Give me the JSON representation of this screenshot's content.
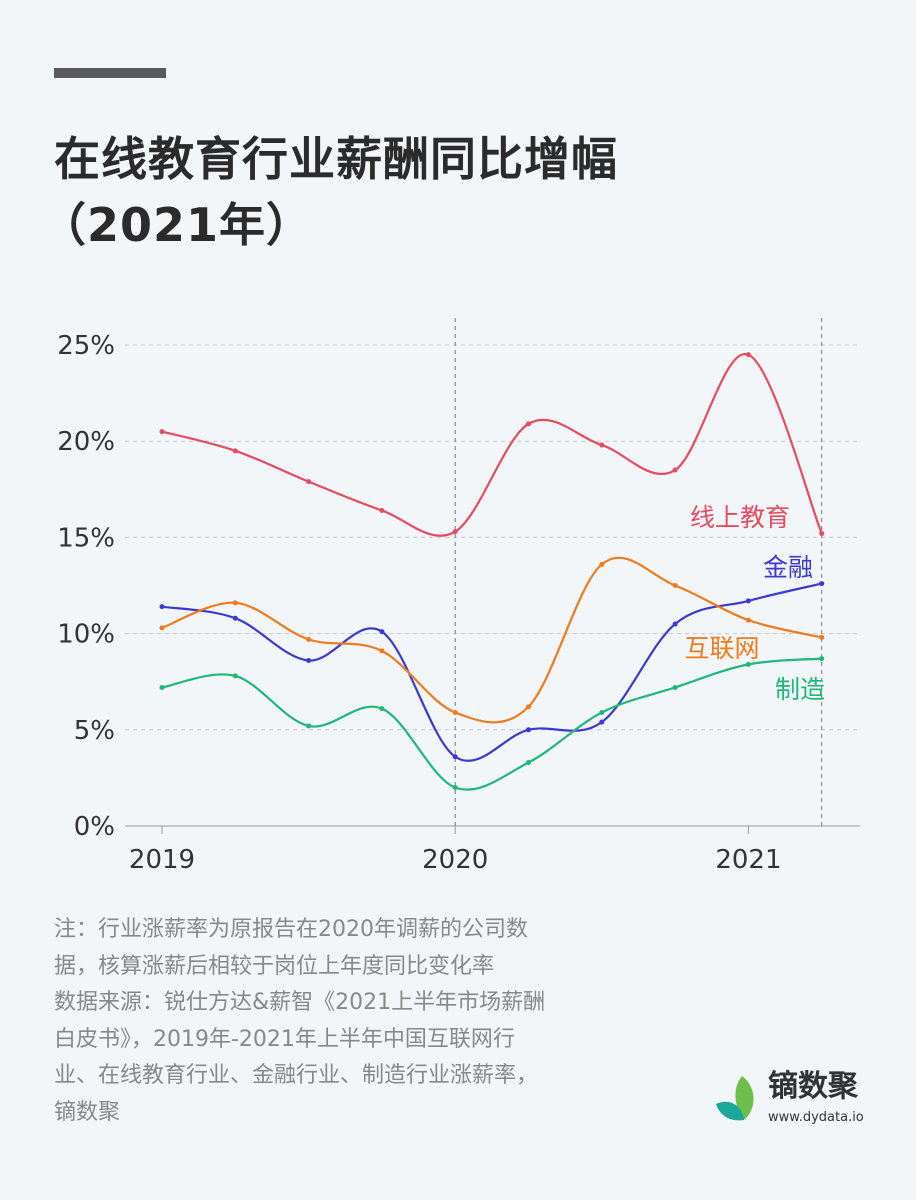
{
  "title_line1": "在线教育行业薪酬同比增幅",
  "title_line2": "（2021年）",
  "chart_data": {
    "type": "line",
    "title": "在线教育行业薪酬同比增幅（2021年）",
    "xlabel": "",
    "ylabel": "",
    "ylim": [
      0,
      25
    ],
    "y_ticks": [
      "0%",
      "5%",
      "10%",
      "15%",
      "20%",
      "25%"
    ],
    "y_tick_values": [
      0,
      5,
      10,
      15,
      20,
      25
    ],
    "x_tick_labels": [
      "2019",
      "2020",
      "2021"
    ],
    "x_tick_positions": [
      0,
      4,
      8
    ],
    "x": [
      0,
      1,
      2,
      3,
      4,
      5,
      6,
      7,
      8,
      9
    ],
    "grid": true,
    "series": [
      {
        "name": "线上教育",
        "color": "#e84a5f",
        "values": [
          20.5,
          19.5,
          17.9,
          16.4,
          15.3,
          20.9,
          19.8,
          18.5,
          24.5,
          15.2
        ]
      },
      {
        "name": "金融",
        "color": "#3a3ad0",
        "values": [
          11.4,
          10.8,
          8.6,
          10.1,
          3.6,
          5.0,
          5.4,
          10.5,
          11.7,
          12.6
        ]
      },
      {
        "name": "互联网",
        "color": "#f07a1c",
        "values": [
          10.3,
          11.6,
          9.7,
          9.1,
          5.9,
          6.2,
          13.6,
          12.5,
          10.7,
          9.8
        ]
      },
      {
        "name": "制造",
        "color": "#1fb87a",
        "values": [
          7.2,
          7.8,
          5.2,
          6.1,
          2.0,
          3.3,
          5.9,
          7.2,
          8.4,
          8.7
        ]
      }
    ]
  },
  "note_lines": [
    "注：行业涨薪率为原报告在2020年调薪的公司数",
    "据，核算涨薪后相较于岗位上年度同比变化率",
    "数据来源：锐仕方达&薪智《2021上半年市场薪酬",
    "白皮书》，2019年-2021年上半年中国互联网行",
    "业、在线教育行业、金融行业、制造行业涨薪率，",
    "镝数聚"
  ],
  "logo": {
    "name": "镝数聚",
    "url": "www.dydata.io"
  }
}
